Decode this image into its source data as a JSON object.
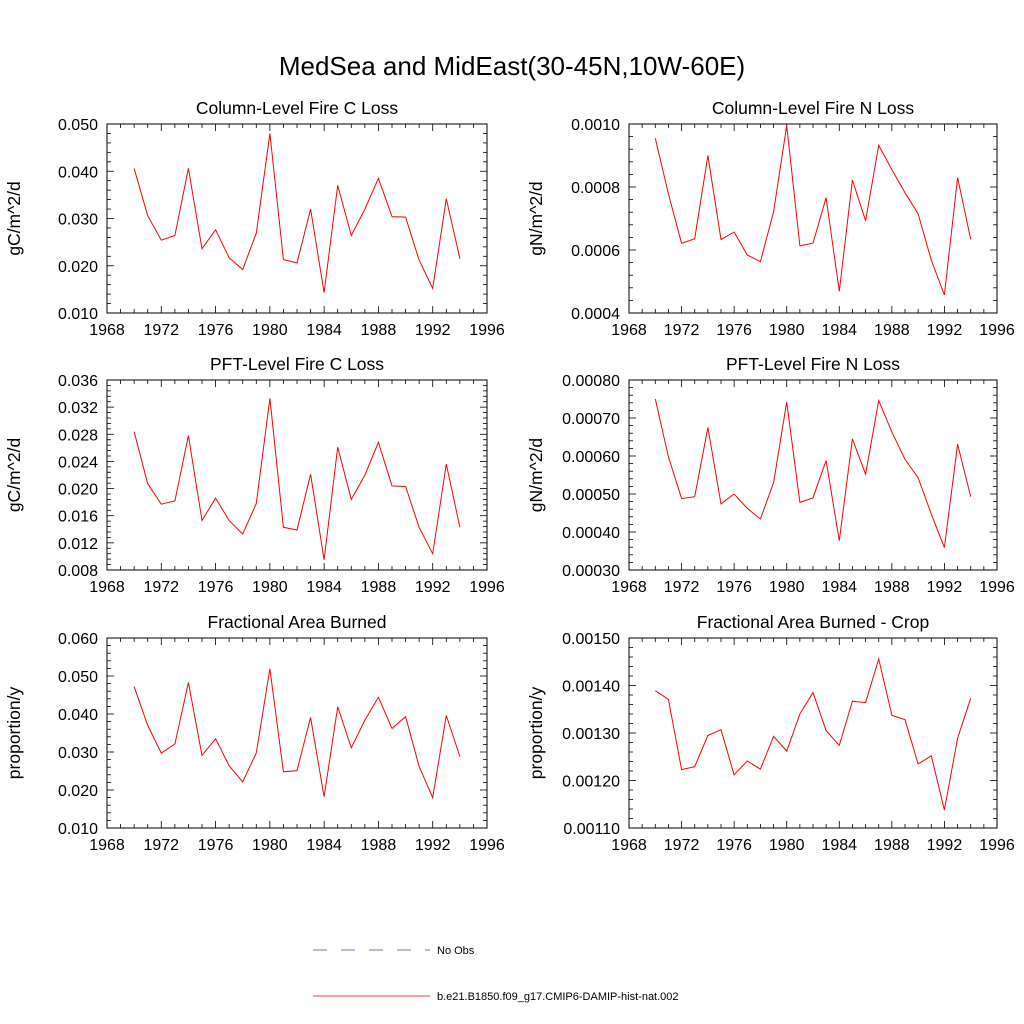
{
  "figure_title": "MedSea and MidEast(30-45N,10W-60E)",
  "colors": {
    "model": "#ff0000",
    "obs": "#4444cc",
    "axis": "#000000"
  },
  "legend": {
    "obs_label": "No Obs",
    "model_label": "b.e21.B1850.f09_g17.CMIP6-DAMIP-hist-nat.002"
  },
  "chart_data": [
    {
      "type": "line",
      "title": "Column-Level Fire C Loss",
      "ylabel": "gC/m^2/d",
      "xlim": [
        1968,
        1996
      ],
      "ylim": [
        0.01,
        0.05
      ],
      "xticks": [
        1968,
        1972,
        1976,
        1980,
        1984,
        1988,
        1992,
        1996
      ],
      "yticks": [
        0.01,
        0.02,
        0.03,
        0.04,
        0.05
      ],
      "ytick_labels": [
        "0.010",
        "0.020",
        "0.030",
        "0.040",
        "0.050"
      ],
      "x": [
        1970,
        1971,
        1972,
        1973,
        1974,
        1975,
        1976,
        1977,
        1978,
        1979,
        1980,
        1981,
        1982,
        1983,
        1984,
        1985,
        1986,
        1987,
        1988,
        1989,
        1990,
        1991,
        1992,
        1993,
        1994
      ],
      "series": [
        {
          "name": "b.e21.B1850.f09_g17.CMIP6-DAMIP-hist-nat.002",
          "values": [
            0.0406,
            0.0306,
            0.0254,
            0.0264,
            0.0406,
            0.0236,
            0.0276,
            0.0217,
            0.0192,
            0.0269,
            0.048,
            0.0213,
            0.0206,
            0.032,
            0.0143,
            0.037,
            0.0264,
            0.032,
            0.0385,
            0.0304,
            0.0303,
            0.0212,
            0.0152,
            0.0342,
            0.0215
          ]
        }
      ]
    },
    {
      "type": "line",
      "title": "Column-Level Fire N Loss",
      "ylabel": "gN/m^2/d",
      "xlim": [
        1968,
        1996
      ],
      "ylim": [
        0.0004,
        0.001
      ],
      "xticks": [
        1968,
        1972,
        1976,
        1980,
        1984,
        1988,
        1992,
        1996
      ],
      "yticks": [
        0.0004,
        0.0006,
        0.0008,
        0.001
      ],
      "ytick_labels": [
        "0.0004",
        "0.0006",
        "0.0008",
        "0.0010"
      ],
      "x": [
        1970,
        1971,
        1972,
        1973,
        1974,
        1975,
        1976,
        1977,
        1978,
        1979,
        1980,
        1981,
        1982,
        1983,
        1984,
        1985,
        1986,
        1987,
        1988,
        1989,
        1990,
        1991,
        1992,
        1993,
        1994
      ],
      "series": [
        {
          "name": "b.e21.B1850.f09_g17.CMIP6-DAMIP-hist-nat.002",
          "values": [
            0.000955,
            0.000778,
            0.000621,
            0.000636,
            0.0009,
            0.000633,
            0.000657,
            0.000584,
            0.000563,
            0.000722,
            0.000995,
            0.000613,
            0.000622,
            0.000766,
            0.000469,
            0.000822,
            0.000693,
            0.000932,
            0.000855,
            0.000782,
            0.000715,
            0.000568,
            0.000457,
            0.00083,
            0.000634
          ]
        }
      ]
    },
    {
      "type": "line",
      "title": "PFT-Level Fire C Loss",
      "ylabel": "gC/m^2/d",
      "xlim": [
        1968,
        1996
      ],
      "ylim": [
        0.008,
        0.036
      ],
      "xticks": [
        1968,
        1972,
        1976,
        1980,
        1984,
        1988,
        1992,
        1996
      ],
      "yticks": [
        0.008,
        0.012,
        0.016,
        0.02,
        0.024,
        0.028,
        0.032,
        0.036
      ],
      "ytick_labels": [
        "0.008",
        "0.012",
        "0.016",
        "0.020",
        "0.024",
        "0.028",
        "0.032",
        "0.036"
      ],
      "x": [
        1970,
        1971,
        1972,
        1973,
        1974,
        1975,
        1976,
        1977,
        1978,
        1979,
        1980,
        1981,
        1982,
        1983,
        1984,
        1985,
        1986,
        1987,
        1988,
        1989,
        1990,
        1991,
        1992,
        1993,
        1994
      ],
      "series": [
        {
          "name": "b.e21.B1850.f09_g17.CMIP6-DAMIP-hist-nat.002",
          "values": [
            0.0284,
            0.0207,
            0.0177,
            0.0182,
            0.0278,
            0.0153,
            0.0186,
            0.0153,
            0.0133,
            0.0178,
            0.0333,
            0.0143,
            0.0139,
            0.0221,
            0.0095,
            0.0261,
            0.0184,
            0.022,
            0.0268,
            0.0204,
            0.0203,
            0.0143,
            0.0104,
            0.0236,
            0.0143
          ]
        }
      ]
    },
    {
      "type": "line",
      "title": "PFT-Level Fire N Loss",
      "ylabel": "gN/m^2/d",
      "xlim": [
        1968,
        1996
      ],
      "ylim": [
        0.0003,
        0.0008
      ],
      "xticks": [
        1968,
        1972,
        1976,
        1980,
        1984,
        1988,
        1992,
        1996
      ],
      "yticks": [
        0.0003,
        0.0004,
        0.0005,
        0.0006,
        0.0007,
        0.0008
      ],
      "ytick_labels": [
        "0.00030",
        "0.00040",
        "0.00050",
        "0.00060",
        "0.00070",
        "0.00080"
      ],
      "x": [
        1970,
        1971,
        1972,
        1973,
        1974,
        1975,
        1976,
        1977,
        1978,
        1979,
        1980,
        1981,
        1982,
        1983,
        1984,
        1985,
        1986,
        1987,
        1988,
        1989,
        1990,
        1991,
        1992,
        1993,
        1994
      ],
      "series": [
        {
          "name": "b.e21.B1850.f09_g17.CMIP6-DAMIP-hist-nat.002",
          "values": [
            0.00075,
            0.000598,
            0.000488,
            0.000493,
            0.000675,
            0.000474,
            0.0005,
            0.000462,
            0.000434,
            0.00053,
            0.000742,
            0.000478,
            0.00049,
            0.000588,
            0.000377,
            0.000645,
            0.000552,
            0.000746,
            0.000663,
            0.000591,
            0.000543,
            0.000447,
            0.000359,
            0.000631,
            0.000493
          ]
        }
      ]
    },
    {
      "type": "line",
      "title": "Fractional Area Burned",
      "ylabel": "proportion/y",
      "xlim": [
        1968,
        1996
      ],
      "ylim": [
        0.01,
        0.06
      ],
      "xticks": [
        1968,
        1972,
        1976,
        1980,
        1984,
        1988,
        1992,
        1996
      ],
      "yticks": [
        0.01,
        0.02,
        0.03,
        0.04,
        0.05,
        0.06
      ],
      "ytick_labels": [
        "0.010",
        "0.020",
        "0.030",
        "0.040",
        "0.050",
        "0.060"
      ],
      "x": [
        1970,
        1971,
        1972,
        1973,
        1974,
        1975,
        1976,
        1977,
        1978,
        1979,
        1980,
        1981,
        1982,
        1983,
        1984,
        1985,
        1986,
        1987,
        1988,
        1989,
        1990,
        1991,
        1992,
        1993,
        1994
      ],
      "series": [
        {
          "name": "b.e21.B1850.f09_g17.CMIP6-DAMIP-hist-nat.002",
          "values": [
            0.0472,
            0.037,
            0.0297,
            0.0321,
            0.0483,
            0.0291,
            0.0335,
            0.0264,
            0.0221,
            0.0298,
            0.0519,
            0.0248,
            0.0251,
            0.0391,
            0.0182,
            0.0419,
            0.0311,
            0.0384,
            0.0444,
            0.0362,
            0.0393,
            0.0262,
            0.018,
            0.0396,
            0.0288
          ]
        }
      ]
    },
    {
      "type": "line",
      "title": "Fractional Area Burned - Crop",
      "ylabel": "proportion/y",
      "xlim": [
        1968,
        1996
      ],
      "ylim": [
        0.0011,
        0.0015
      ],
      "xticks": [
        1968,
        1972,
        1976,
        1980,
        1984,
        1988,
        1992,
        1996
      ],
      "yticks": [
        0.0011,
        0.0012,
        0.0013,
        0.0014,
        0.0015
      ],
      "ytick_labels": [
        "0.00110",
        "0.00120",
        "0.00130",
        "0.00140",
        "0.00150"
      ],
      "x": [
        1970,
        1971,
        1972,
        1973,
        1974,
        1975,
        1976,
        1977,
        1978,
        1979,
        1980,
        1981,
        1982,
        1983,
        1984,
        1985,
        1986,
        1987,
        1988,
        1989,
        1990,
        1991,
        1992,
        1993,
        1994
      ],
      "series": [
        {
          "name": "b.e21.B1850.f09_g17.CMIP6-DAMIP-hist-nat.002",
          "values": [
            0.001389,
            0.001371,
            0.001223,
            0.001229,
            0.001295,
            0.001307,
            0.001212,
            0.001241,
            0.001224,
            0.001293,
            0.001262,
            0.00134,
            0.001385,
            0.001305,
            0.001274,
            0.001367,
            0.001364,
            0.001456,
            0.001337,
            0.001328,
            0.001235,
            0.001252,
            0.001138,
            0.001289,
            0.001373
          ]
        }
      ]
    }
  ]
}
